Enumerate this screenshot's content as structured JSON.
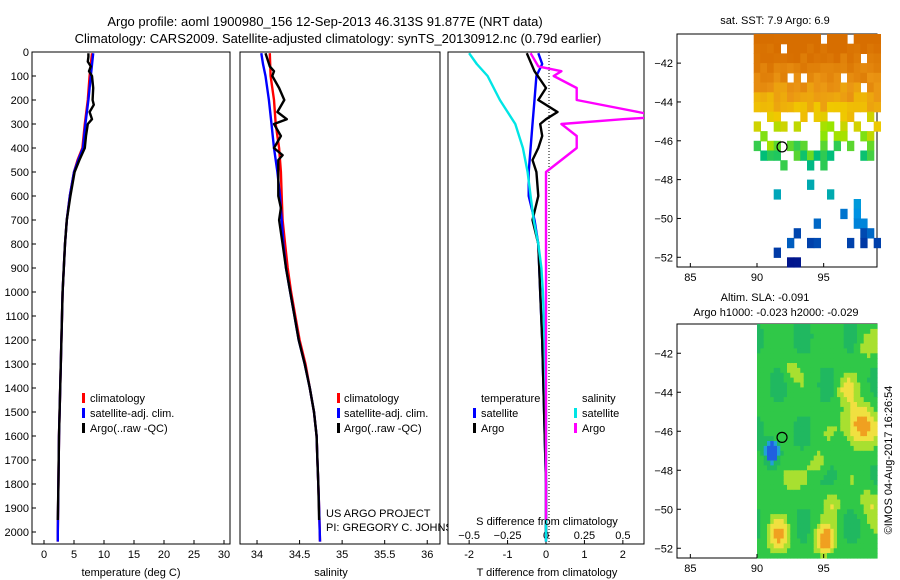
{
  "header": {
    "title_line1": "Argo profile: aoml 1900980_156 12-Sep-2013 46.313S 91.877E (NRT data)",
    "title_line2": "Climatology: CARS2009. Satellite-adjusted climatology: synTS_20130912.nc (0.79d earlier)"
  },
  "colors": {
    "climatology": "#ff0000",
    "satellite_adj": "#0000ff",
    "argo": "#000000",
    "temp_diff_satellite": "#0000ff",
    "temp_diff_argo": "#000000",
    "sal_diff_satellite": "#00e5e5",
    "sal_diff_argo": "#ff00ff"
  },
  "chart_data": [
    {
      "id": "temperature-profile",
      "type": "line",
      "xlabel": "temperature (deg C)",
      "xlim": [
        -2,
        31
      ],
      "xticks": [
        0,
        5,
        10,
        15,
        20,
        25,
        30
      ],
      "ylim": [
        0,
        2050
      ],
      "yticks": [
        0,
        100,
        200,
        300,
        400,
        500,
        600,
        700,
        800,
        900,
        1000,
        1100,
        1200,
        1300,
        1400,
        1500,
        1600,
        1700,
        1800,
        1900,
        2000
      ],
      "legend": [
        "climatology",
        "satellite-adj. clim.",
        "Argo(..raw -QC)"
      ],
      "series": [
        {
          "name": "climatology",
          "depth": [
            5,
            100,
            200,
            300,
            400,
            450,
            500,
            600,
            700,
            800,
            900,
            1000,
            1200,
            1400,
            1600,
            1800,
            2000,
            2040
          ],
          "values": [
            8.0,
            7.6,
            7.3,
            6.8,
            6.4,
            5.6,
            5.0,
            4.3,
            3.8,
            3.5,
            3.3,
            3.1,
            2.9,
            2.7,
            2.5,
            2.4,
            2.3,
            2.3
          ]
        },
        {
          "name": "satellite-adj. clim.",
          "depth": [
            5,
            100,
            200,
            300,
            400,
            450,
            500,
            600,
            700,
            800,
            900,
            1000,
            1200,
            1400,
            1600,
            1800,
            2000,
            2040
          ],
          "values": [
            8.2,
            7.8,
            7.4,
            6.9,
            6.5,
            5.7,
            5.0,
            4.3,
            3.8,
            3.5,
            3.3,
            3.1,
            2.9,
            2.7,
            2.5,
            2.4,
            2.3,
            2.3
          ]
        },
        {
          "name": "Argo(..raw -QC)",
          "depth": [
            5,
            20,
            40,
            60,
            80,
            100,
            150,
            200,
            220,
            250,
            280,
            300,
            350,
            400,
            450,
            500,
            600,
            700,
            800,
            900,
            1000,
            1200,
            1400,
            1600,
            1800,
            1950
          ],
          "values": [
            7.4,
            7.4,
            7.3,
            7.8,
            7.5,
            8.0,
            8.2,
            8.1,
            8.3,
            7.6,
            8.0,
            7.3,
            7.0,
            6.8,
            5.9,
            5.1,
            4.4,
            3.8,
            3.5,
            3.3,
            3.1,
            2.9,
            2.7,
            2.5,
            2.4,
            2.3
          ]
        }
      ]
    },
    {
      "id": "salinity-profile",
      "type": "line",
      "xlabel": "salinity",
      "xlim": [
        33.8,
        36.15
      ],
      "xticks": [
        34,
        34.5,
        35,
        35.5,
        36
      ],
      "ylim": [
        0,
        2050
      ],
      "legend": [
        "climatology",
        "satellite-adj. clim.",
        "Argo(..raw -QC)"
      ],
      "annotations": [
        "US ARGO PROJECT",
        "PI: GREGORY C. JOHNSON"
      ],
      "series": [
        {
          "name": "climatology",
          "depth": [
            5,
            100,
            200,
            300,
            400,
            500,
            600,
            700,
            800,
            900,
            1000,
            1100,
            1200,
            1300,
            1400,
            1500,
            1600,
            1700,
            1800,
            1900,
            2040
          ],
          "values": [
            34.15,
            34.16,
            34.2,
            34.22,
            34.26,
            34.28,
            34.29,
            34.3,
            34.33,
            34.36,
            34.4,
            34.45,
            34.5,
            34.57,
            34.62,
            34.67,
            34.7,
            34.71,
            34.72,
            34.73,
            34.74
          ]
        },
        {
          "name": "satellite-adj. clim.",
          "depth": [
            5,
            50,
            100,
            200,
            300,
            400,
            500,
            600,
            700,
            800,
            900,
            1000,
            1100,
            1200,
            1300,
            1400,
            1500,
            1600,
            1700,
            1800,
            1900,
            2040
          ],
          "values": [
            34.05,
            34.07,
            34.1,
            34.14,
            34.17,
            34.2,
            34.24,
            34.27,
            34.29,
            34.31,
            34.34,
            34.39,
            34.44,
            34.49,
            34.56,
            34.62,
            34.67,
            34.7,
            34.71,
            34.72,
            34.73,
            34.74
          ]
        },
        {
          "name": "Argo(..raw -QC)",
          "depth": [
            5,
            60,
            80,
            100,
            150,
            200,
            250,
            280,
            300,
            350,
            400,
            430,
            450,
            500,
            600,
            650,
            700,
            800,
            900,
            1000,
            1100,
            1200,
            1300,
            1400,
            1500,
            1600,
            1700,
            1800,
            1950
          ],
          "values": [
            34.1,
            34.15,
            34.2,
            34.18,
            34.26,
            34.32,
            34.24,
            34.35,
            34.2,
            34.28,
            34.2,
            34.3,
            34.25,
            34.25,
            34.25,
            34.28,
            34.26,
            34.3,
            34.34,
            34.39,
            34.44,
            34.49,
            34.56,
            34.62,
            34.67,
            34.7,
            34.71,
            34.72,
            34.73
          ]
        }
      ]
    },
    {
      "id": "difference-profile",
      "type": "line",
      "xlabel": "T difference from climatology",
      "xlabel_top": "S difference from climatology",
      "xlim": [
        -2.55,
        2.55
      ],
      "xticks": [
        -2,
        -1,
        0,
        1,
        2
      ],
      "xticks_salinity": [
        -0.5,
        -0.25,
        0,
        0.25,
        0.5
      ],
      "ylim": [
        0,
        2050
      ],
      "legend_groups": {
        "temperature": [
          "satellite",
          "Argo"
        ],
        "salinity": [
          "satellite",
          "Argo"
        ]
      },
      "series": [
        {
          "name": "temperature satellite",
          "depth": [
            5,
            50,
            100,
            200,
            300,
            400,
            500,
            600,
            700,
            800,
            1000,
            1200,
            1500,
            1800,
            2040
          ],
          "values": [
            -0.2,
            -0.1,
            -0.25,
            -0.3,
            -0.35,
            -0.4,
            -0.45,
            -0.45,
            -0.3,
            -0.2,
            -0.15,
            -0.1,
            -0.05,
            0.0,
            0.0
          ]
        },
        {
          "name": "temperature Argo",
          "depth": [
            5,
            80,
            150,
            200,
            250,
            280,
            300,
            350,
            400,
            450,
            500,
            600,
            700,
            800,
            1000,
            1200,
            1500,
            1800,
            2000
          ],
          "values": [
            -0.5,
            -0.3,
            0.0,
            -0.2,
            0.3,
            0.0,
            -0.15,
            -0.1,
            -0.2,
            -0.35,
            -0.25,
            -0.2,
            -0.35,
            -0.2,
            -0.15,
            -0.1,
            -0.05,
            0.0,
            0.0
          ]
        },
        {
          "name": "salinity satellite",
          "depth": [
            5,
            50,
            100,
            200,
            300,
            400,
            500,
            600,
            700,
            800,
            900,
            1000,
            1200,
            1500,
            1800,
            2040
          ],
          "values": [
            -0.5,
            -0.45,
            -0.38,
            -0.3,
            -0.2,
            -0.15,
            -0.12,
            -0.1,
            -0.08,
            -0.05,
            -0.03,
            -0.02,
            -0.01,
            0.0,
            0.0,
            0.0
          ]
        },
        {
          "name": "salinity Argo",
          "depth": [
            5,
            60,
            80,
            100,
            150,
            200,
            250,
            270,
            280,
            300,
            350,
            400,
            450,
            500,
            600,
            700,
            800,
            900,
            1000,
            1200,
            1500,
            1800,
            1950
          ],
          "values": [
            -0.1,
            -0.05,
            0.1,
            0.05,
            0.2,
            0.2,
            0.6,
            0.75,
            0.5,
            0.1,
            0.2,
            0.2,
            0.1,
            0.0,
            0.0,
            0.0,
            0.0,
            0.0,
            0.0,
            0.0,
            0.0,
            0.0,
            0.0
          ]
        }
      ]
    },
    {
      "id": "sst-map",
      "type": "heatmap",
      "title": "sat. SST: 7.9 Argo: 6.9",
      "xlim": [
        84,
        99
      ],
      "ylim": [
        -52.5,
        -40.5
      ],
      "xticks": [
        85,
        90,
        95
      ],
      "yticks": [
        -42,
        -44,
        -46,
        -48,
        -50,
        -52
      ],
      "profile_location": [
        91.877,
        -46.313
      ]
    },
    {
      "id": "sla-map",
      "type": "heatmap",
      "title_line1": "Altim. SLA: -0.091",
      "title_line2": "Argo h1000: -0.023 h2000: -0.029",
      "xlim": [
        84,
        99
      ],
      "ylim": [
        -52.5,
        -40.5
      ],
      "xticks": [
        85,
        90,
        95
      ],
      "yticks": [
        -42,
        -44,
        -46,
        -48,
        -50,
        -52
      ],
      "profile_location": [
        91.877,
        -46.313
      ]
    }
  ],
  "footer": {
    "imos_stamp": "©IMOS 04-Aug-2017 16:26:54"
  }
}
